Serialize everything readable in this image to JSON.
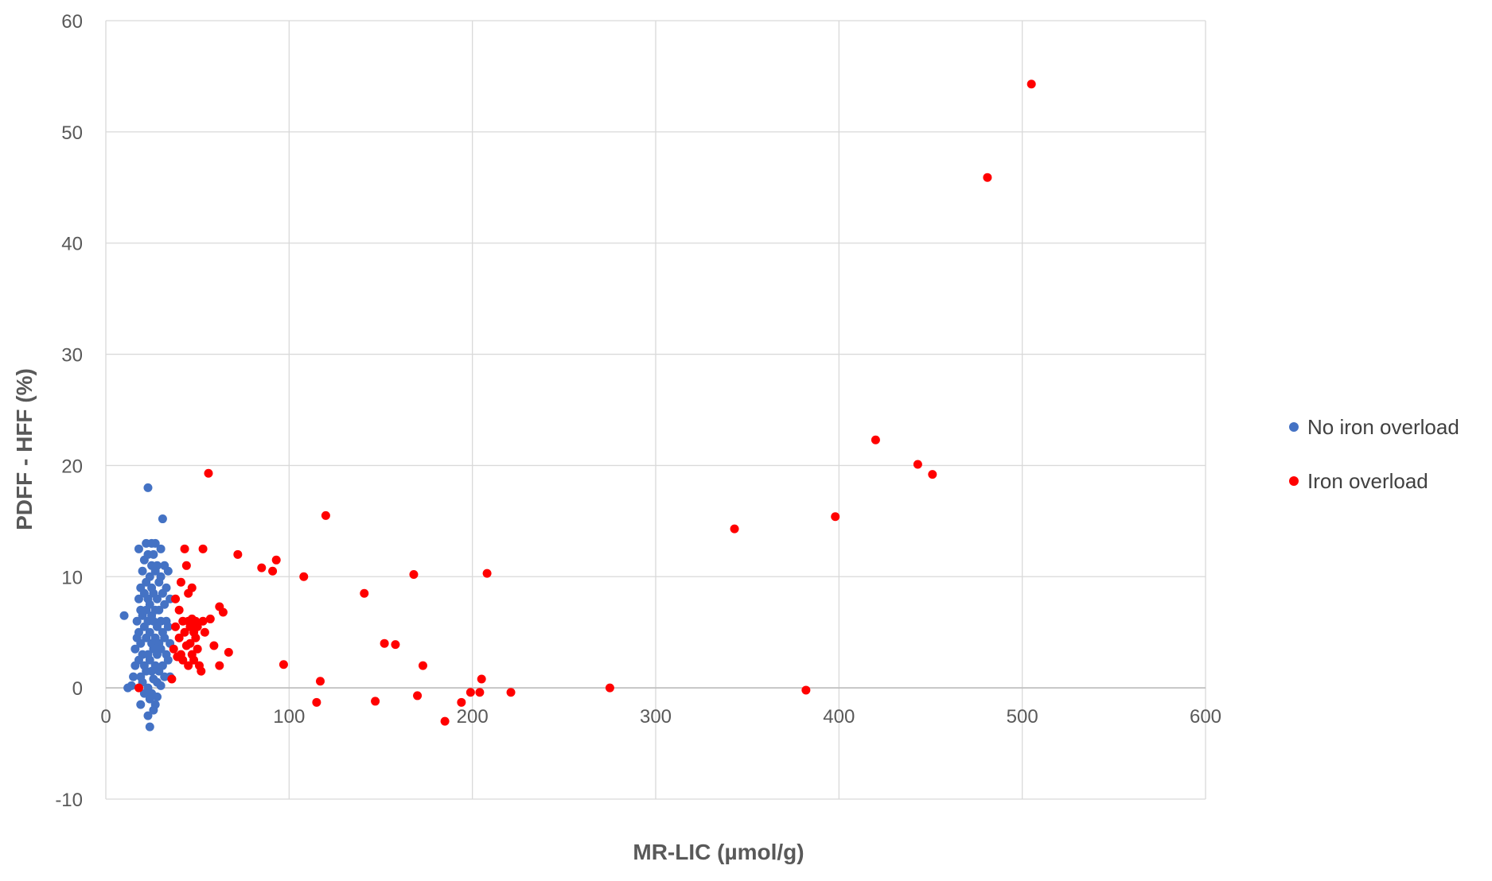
{
  "chart_data": {
    "type": "scatter",
    "title": "",
    "xlabel": "MR-LIC (µmol/g)",
    "ylabel": "PDFF - HFF (%)",
    "xlim": [
      0,
      600
    ],
    "ylim": [
      -10,
      60
    ],
    "x_ticks": [
      "0",
      "100",
      "200",
      "300",
      "400",
      "500",
      "600"
    ],
    "y_ticks": [
      "-10",
      "0",
      "10",
      "20",
      "30",
      "40",
      "50",
      "60"
    ],
    "grid": true,
    "legend_position": "right",
    "series": [
      {
        "name": "No iron overload",
        "color": "#4472C4",
        "points": [
          [
            10,
            6.5
          ],
          [
            12,
            0
          ],
          [
            14,
            0.2
          ],
          [
            15,
            1
          ],
          [
            16,
            2
          ],
          [
            16,
            3.5
          ],
          [
            17,
            4.5
          ],
          [
            17,
            6
          ],
          [
            18,
            12.5
          ],
          [
            18,
            8
          ],
          [
            18,
            5
          ],
          [
            18,
            2.5
          ],
          [
            19,
            -1.5
          ],
          [
            19,
            9
          ],
          [
            19,
            7
          ],
          [
            19,
            4
          ],
          [
            19,
            1
          ],
          [
            20,
            10.5
          ],
          [
            20,
            6.5
          ],
          [
            20,
            3
          ],
          [
            20,
            0.5
          ],
          [
            21,
            11.5
          ],
          [
            21,
            8.5
          ],
          [
            21,
            5.5
          ],
          [
            21,
            2
          ],
          [
            21,
            -0.5
          ],
          [
            22,
            13
          ],
          [
            22,
            9.5
          ],
          [
            22,
            7
          ],
          [
            22,
            4.5
          ],
          [
            22,
            1.5
          ],
          [
            23,
            18
          ],
          [
            23,
            12
          ],
          [
            23,
            8
          ],
          [
            23,
            6
          ],
          [
            23,
            3
          ],
          [
            23,
            0
          ],
          [
            23,
            -2.5
          ],
          [
            24,
            10
          ],
          [
            24,
            7.5
          ],
          [
            24,
            5
          ],
          [
            24,
            2.5
          ],
          [
            24,
            -1
          ],
          [
            24,
            -3.5
          ],
          [
            25,
            13
          ],
          [
            25,
            11
          ],
          [
            25,
            9
          ],
          [
            25,
            6.5
          ],
          [
            25,
            4
          ],
          [
            25,
            1.5
          ],
          [
            25,
            -0.5
          ],
          [
            26,
            12
          ],
          [
            26,
            8.5
          ],
          [
            26,
            6
          ],
          [
            26,
            3.5
          ],
          [
            26,
            0.8
          ],
          [
            26,
            -2
          ],
          [
            27,
            13
          ],
          [
            27,
            10.5
          ],
          [
            27,
            7
          ],
          [
            27,
            4.5
          ],
          [
            27,
            2
          ],
          [
            27,
            -1.5
          ],
          [
            28,
            11
          ],
          [
            28,
            8
          ],
          [
            28,
            5.5
          ],
          [
            28,
            3
          ],
          [
            28,
            0.5
          ],
          [
            28,
            -0.8
          ],
          [
            29,
            9.5
          ],
          [
            29,
            7
          ],
          [
            29,
            4
          ],
          [
            29,
            1.5
          ],
          [
            30,
            12.5
          ],
          [
            30,
            10
          ],
          [
            30,
            6
          ],
          [
            30,
            3.5
          ],
          [
            30,
            0.2
          ],
          [
            31,
            15.2
          ],
          [
            31,
            8.5
          ],
          [
            31,
            5
          ],
          [
            31,
            2
          ],
          [
            32,
            11
          ],
          [
            32,
            7.5
          ],
          [
            32,
            4.5
          ],
          [
            32,
            1
          ],
          [
            33,
            9
          ],
          [
            33,
            6
          ],
          [
            33,
            3
          ],
          [
            34,
            10.5
          ],
          [
            34,
            5.5
          ],
          [
            34,
            2.5
          ],
          [
            35,
            8
          ],
          [
            35,
            4
          ],
          [
            35,
            1
          ]
        ]
      },
      {
        "name": "Iron overload",
        "color": "#FF0000",
        "points": [
          [
            18,
            0
          ],
          [
            36,
            0.8
          ],
          [
            37,
            3.5
          ],
          [
            38,
            8
          ],
          [
            38,
            5.5
          ],
          [
            39,
            2.8
          ],
          [
            40,
            7
          ],
          [
            40,
            4.5
          ],
          [
            41,
            9.5
          ],
          [
            41,
            3
          ],
          [
            42,
            6
          ],
          [
            42,
            2.5
          ],
          [
            43,
            12.5
          ],
          [
            43,
            5
          ],
          [
            44,
            11
          ],
          [
            44,
            3.8
          ],
          [
            45,
            8.5
          ],
          [
            45,
            6
          ],
          [
            45,
            2
          ],
          [
            46,
            5.5
          ],
          [
            46,
            4
          ],
          [
            47,
            9
          ],
          [
            47,
            6.2
          ],
          [
            47,
            3
          ],
          [
            48,
            5
          ],
          [
            48,
            2.5
          ],
          [
            49,
            6
          ],
          [
            49,
            4.5
          ],
          [
            50,
            5.5
          ],
          [
            50,
            3.5
          ],
          [
            51,
            2
          ],
          [
            52,
            1.5
          ],
          [
            53,
            12.5
          ],
          [
            53,
            6
          ],
          [
            54,
            5
          ],
          [
            56,
            19.3
          ],
          [
            57,
            6.2
          ],
          [
            59,
            3.8
          ],
          [
            62,
            7.3
          ],
          [
            62,
            2
          ],
          [
            64,
            6.8
          ],
          [
            67,
            3.2
          ],
          [
            72,
            12
          ],
          [
            85,
            10.8
          ],
          [
            91,
            10.5
          ],
          [
            93,
            11.5
          ],
          [
            97,
            2.1
          ],
          [
            108,
            10
          ],
          [
            115,
            -1.3
          ],
          [
            117,
            0.6
          ],
          [
            120,
            15.5
          ],
          [
            141,
            8.5
          ],
          [
            147,
            -1.2
          ],
          [
            152,
            4
          ],
          [
            158,
            3.9
          ],
          [
            168,
            10.2
          ],
          [
            170,
            -0.7
          ],
          [
            173,
            2
          ],
          [
            185,
            -3
          ],
          [
            194,
            -1.3
          ],
          [
            199,
            -0.4
          ],
          [
            204,
            -0.4
          ],
          [
            205,
            0.8
          ],
          [
            208,
            10.3
          ],
          [
            221,
            -0.4
          ],
          [
            275,
            0
          ],
          [
            343,
            14.3
          ],
          [
            382,
            -0.2
          ],
          [
            398,
            15.4
          ],
          [
            420,
            22.3
          ],
          [
            443,
            20.1
          ],
          [
            451,
            19.2
          ],
          [
            481,
            45.9
          ],
          [
            505,
            54.3
          ]
        ]
      }
    ]
  }
}
